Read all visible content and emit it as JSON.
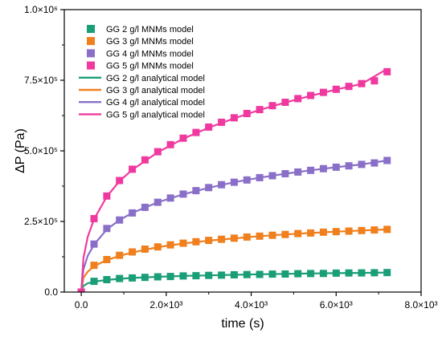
{
  "chart_data": {
    "type": "scatter",
    "xlabel": "time (s)",
    "ylabel": "ΔP (Pa)",
    "xlim": [
      -400,
      8000
    ],
    "ylim": [
      0,
      1000000
    ],
    "grid": false,
    "legend_position": "top-left",
    "x_ticks": [
      {
        "value": 0,
        "label": "0.0"
      },
      {
        "value": 2000,
        "label": "2.0×10³"
      },
      {
        "value": 4000,
        "label": "4.0×10³"
      },
      {
        "value": 6000,
        "label": "6.0×10³"
      },
      {
        "value": 8000,
        "label": "8.0×10³"
      }
    ],
    "y_ticks": [
      {
        "value": 0,
        "label": "0.0"
      },
      {
        "value": 250000,
        "label": "2.5×10⁵"
      },
      {
        "value": 500000,
        "label": "5.0×10⁵"
      },
      {
        "value": 750000,
        "label": "7.5×10⁵"
      },
      {
        "value": 1000000,
        "label": "1.0×10⁶"
      }
    ],
    "series": [
      {
        "name": "GG 2 g/l MNMs model",
        "kind": "markers",
        "color": "#1a9e77",
        "x": [
          0,
          300,
          600,
          900,
          1200,
          1500,
          1800,
          2100,
          2400,
          2700,
          3000,
          3300,
          3600,
          3900,
          4200,
          4500,
          4800,
          5100,
          5400,
          5700,
          6000,
          6300,
          6600,
          6900,
          7200
        ],
        "y": [
          0,
          38000,
          44000,
          48000,
          50000,
          52000,
          54000,
          55000,
          57000,
          58000,
          59000,
          60000,
          61000,
          62000,
          62500,
          63500,
          64000,
          65000,
          65500,
          66000,
          67000,
          67500,
          68000,
          68500,
          69000
        ]
      },
      {
        "name": "GG 3 g/l MNMs model",
        "kind": "markers",
        "color": "#f07f1e",
        "x": [
          0,
          300,
          600,
          900,
          1200,
          1500,
          1800,
          2100,
          2400,
          2700,
          3000,
          3300,
          3600,
          3900,
          4200,
          4500,
          4800,
          5100,
          5400,
          5700,
          6000,
          6300,
          6600,
          6900,
          7200
        ],
        "y": [
          0,
          95000,
          115000,
          130000,
          142000,
          152000,
          160000,
          167000,
          173000,
          178000,
          183000,
          187000,
          191000,
          195000,
          198000,
          201000,
          204000,
          207000,
          209000,
          212000,
          214000,
          216000,
          218000,
          220000,
          222000
        ]
      },
      {
        "name": "GG 4 g/l MNMs model",
        "kind": "markers",
        "color": "#8a6fc9",
        "x": [
          0,
          300,
          600,
          900,
          1200,
          1500,
          1800,
          2100,
          2400,
          2700,
          3000,
          3300,
          3600,
          3900,
          4200,
          4500,
          4800,
          5100,
          5400,
          5700,
          6000,
          6300,
          6600,
          6900,
          7200
        ],
        "y": [
          0,
          170000,
          225000,
          255000,
          280000,
          300000,
          318000,
          333000,
          347000,
          359000,
          370000,
          380000,
          389000,
          397000,
          405000,
          412000,
          419000,
          425000,
          431000,
          437000,
          442000,
          447000,
          452000,
          457000,
          466000
        ]
      },
      {
        "name": "GG 5 g/l MNMs model",
        "kind": "markers",
        "color": "#f0399e",
        "x": [
          0,
          300,
          600,
          900,
          1200,
          1500,
          1800,
          2100,
          2400,
          2700,
          3000,
          3300,
          3600,
          3900,
          4200,
          4500,
          4800,
          5100,
          5400,
          5700,
          6000,
          6300,
          6600,
          6900,
          7200
        ],
        "y": [
          0,
          260000,
          340000,
          395000,
          435000,
          468000,
          497000,
          522000,
          545000,
          565000,
          584000,
          601000,
          617000,
          632000,
          646000,
          660000,
          672000,
          685000,
          696000,
          707000,
          718000,
          728000,
          738000,
          748000,
          780000
        ]
      },
      {
        "name": "GG 2 g/l analytical model",
        "kind": "line",
        "color": "#1a9e77",
        "x": [
          0,
          50,
          150,
          300,
          600,
          900,
          1200,
          1800,
          2400,
          3000,
          3600,
          4200,
          4800,
          5400,
          6000,
          6600,
          7200
        ],
        "y": [
          0,
          22000,
          31000,
          37000,
          43000,
          47000,
          50000,
          54000,
          57000,
          59000,
          61000,
          63000,
          64500,
          66000,
          67000,
          68000,
          69000
        ]
      },
      {
        "name": "GG 3 g/l analytical model",
        "kind": "line",
        "color": "#f07f1e",
        "x": [
          0,
          50,
          150,
          300,
          600,
          900,
          1200,
          1800,
          2400,
          3000,
          3600,
          4200,
          4800,
          5400,
          6000,
          6600,
          7200
        ],
        "y": [
          0,
          50000,
          72000,
          92000,
          113000,
          128000,
          140000,
          159000,
          172000,
          182000,
          190000,
          198000,
          204000,
          209000,
          214000,
          218000,
          222000
        ]
      },
      {
        "name": "GG 4 g/l analytical model",
        "kind": "line",
        "color": "#8a6fc9",
        "x": [
          0,
          50,
          150,
          300,
          600,
          900,
          1200,
          1800,
          2400,
          3000,
          3600,
          4200,
          4800,
          5400,
          6000,
          6600,
          7200
        ],
        "y": [
          0,
          80000,
          128000,
          168000,
          222000,
          255000,
          280000,
          318000,
          346000,
          369000,
          389000,
          405000,
          419000,
          431000,
          442000,
          452000,
          466000
        ]
      },
      {
        "name": "GG 5 g/l analytical model",
        "kind": "line",
        "color": "#f0399e",
        "x": [
          0,
          50,
          150,
          300,
          600,
          900,
          1200,
          1800,
          2400,
          3000,
          3600,
          4200,
          4800,
          5400,
          6000,
          6600,
          7200
        ],
        "y": [
          0,
          120000,
          195000,
          258000,
          338000,
          393000,
          433000,
          495000,
          543000,
          582000,
          615000,
          645000,
          671000,
          695000,
          717000,
          737000,
          790000
        ]
      }
    ]
  }
}
